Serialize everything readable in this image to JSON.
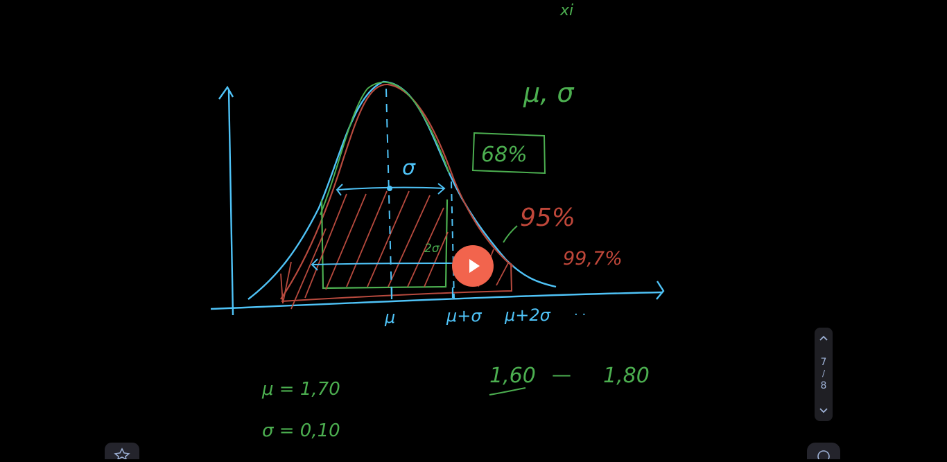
{
  "board": {
    "top_label": "xi",
    "params_label": "μ, σ",
    "pct_68": "68%",
    "pct_95": "95%",
    "pct_997": "99,7%",
    "sigma_label": "σ",
    "two_sigma_label": "2σ",
    "axis_mu": "μ",
    "axis_mu_sigma": "μ+σ",
    "axis_mu_2sigma": "μ+2σ",
    "axis_dots": ". .",
    "mu_value": "μ =   1,70",
    "sigma_value": "σ =  0,10",
    "range_low": "1,60",
    "range_dash": "—",
    "range_high": "1,80"
  },
  "pager": {
    "current": "7",
    "separator": "/",
    "total": "8"
  },
  "colors": {
    "blue": "#4fc3f7",
    "red": "#b84a3e",
    "green": "#4caf50",
    "coral": "#f2644d"
  },
  "icons": {
    "play": "play-icon",
    "up": "chevron-up-icon",
    "down": "chevron-down-icon",
    "left_tool": "star-icon",
    "right_tool": "search-icon"
  }
}
